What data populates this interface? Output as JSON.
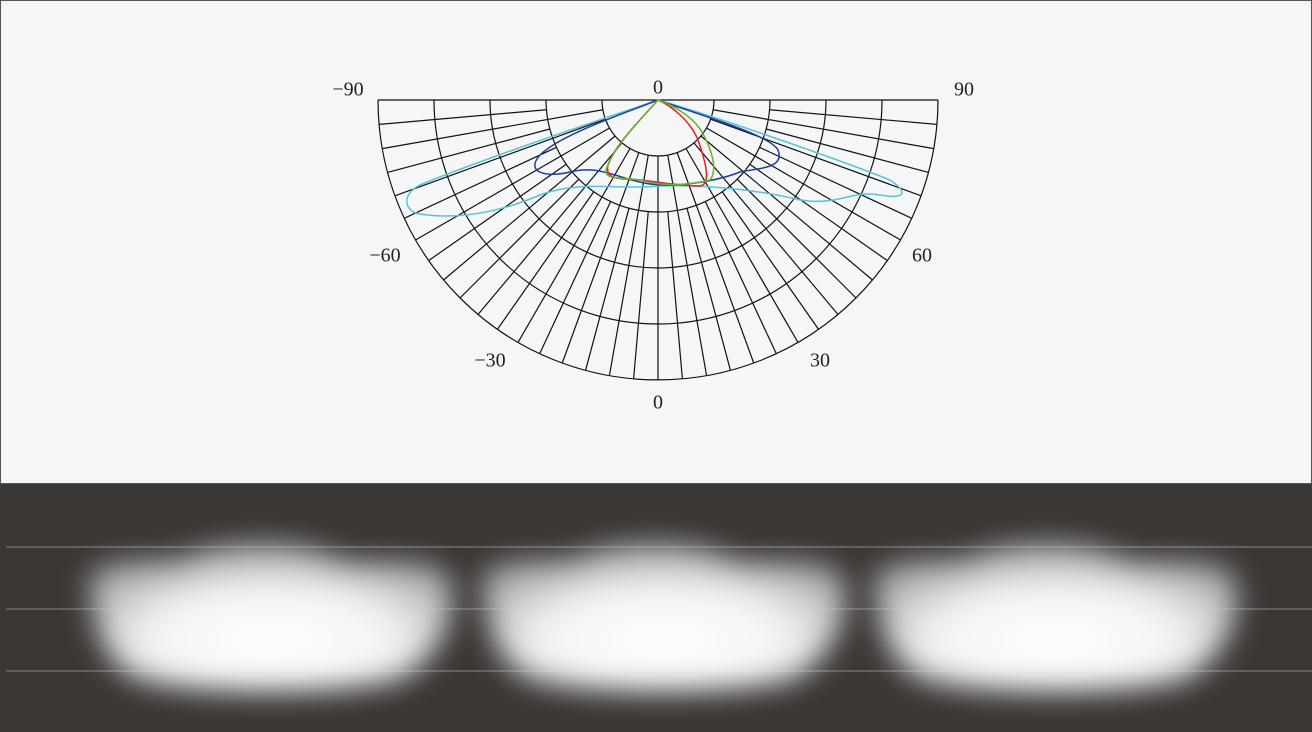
{
  "polar_labels": {
    "top_left": "−90",
    "top_center": "0",
    "top_right": "90",
    "mid_left": "−60",
    "mid_right": "60",
    "low_left": "−30",
    "low_right": "30",
    "bottom": "0"
  }
}
